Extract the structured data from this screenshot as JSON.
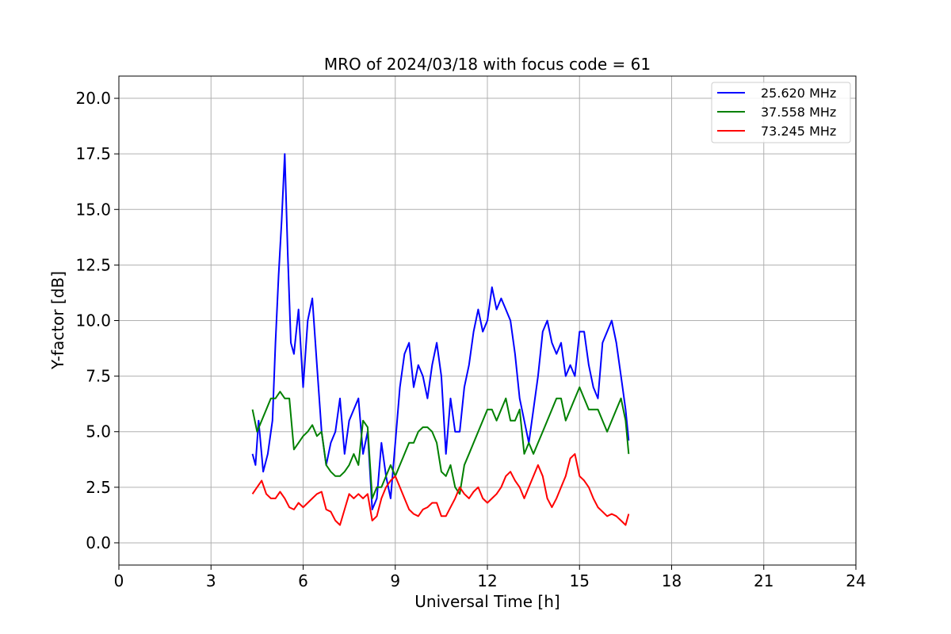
{
  "chart_data": {
    "type": "line",
    "title": "MRO of 2024/03/18 with focus code = 61",
    "xlabel": "Universal Time [h]",
    "ylabel": "Y-factor [dB]",
    "xlim": [
      0,
      24
    ],
    "ylim": [
      -1,
      21
    ],
    "xticks": [
      0,
      3,
      6,
      9,
      12,
      15,
      18,
      21,
      24
    ],
    "yticks": [
      0.0,
      2.5,
      5.0,
      7.5,
      10.0,
      12.5,
      15.0,
      17.5,
      20.0
    ],
    "ytick_labels": [
      "0.0",
      "2.5",
      "5.0",
      "7.5",
      "10.0",
      "12.5",
      "15.0",
      "17.5",
      "20.0"
    ],
    "grid": true,
    "legend_position": "top-right",
    "series": [
      {
        "name": "25.620 MHz",
        "color": "#0000ff",
        "x": [
          4.35,
          4.45,
          4.55,
          4.7,
          4.85,
          5.0,
          5.1,
          5.2,
          5.3,
          5.4,
          5.5,
          5.6,
          5.7,
          5.85,
          6.0,
          6.15,
          6.3,
          6.45,
          6.6,
          6.75,
          6.9,
          7.05,
          7.2,
          7.35,
          7.5,
          7.65,
          7.8,
          7.95,
          8.1,
          8.25,
          8.4,
          8.55,
          8.7,
          8.85,
          9.0,
          9.15,
          9.3,
          9.45,
          9.6,
          9.75,
          9.9,
          10.05,
          10.2,
          10.35,
          10.5,
          10.65,
          10.8,
          10.95,
          11.1,
          11.25,
          11.4,
          11.55,
          11.7,
          11.85,
          12.0,
          12.15,
          12.3,
          12.45,
          12.6,
          12.75,
          12.9,
          13.05,
          13.2,
          13.35,
          13.5,
          13.65,
          13.8,
          13.95,
          14.1,
          14.25,
          14.4,
          14.55,
          14.7,
          14.85,
          15.0,
          15.15,
          15.3,
          15.45,
          15.6,
          15.75,
          15.9,
          16.05,
          16.2,
          16.35,
          16.5,
          16.6
        ],
        "y": [
          4.0,
          3.5,
          5.5,
          3.2,
          4.0,
          5.5,
          9.0,
          12.0,
          14.5,
          17.5,
          13.0,
          9.0,
          8.5,
          10.5,
          7.0,
          10.0,
          11.0,
          8.0,
          5.0,
          3.5,
          4.5,
          5.0,
          6.5,
          4.0,
          5.5,
          6.0,
          6.5,
          4.0,
          5.0,
          1.5,
          2.0,
          4.5,
          3.0,
          2.0,
          4.5,
          7.0,
          8.5,
          9.0,
          7.0,
          8.0,
          7.5,
          6.5,
          8.0,
          9.0,
          7.5,
          4.0,
          6.5,
          5.0,
          5.0,
          7.0,
          8.0,
          9.5,
          10.5,
          9.5,
          10.0,
          11.5,
          10.5,
          11.0,
          10.5,
          10.0,
          8.5,
          6.5,
          5.5,
          4.5,
          6.0,
          7.5,
          9.5,
          10.0,
          9.0,
          8.5,
          9.0,
          7.5,
          8.0,
          7.5,
          9.5,
          9.5,
          8.0,
          7.0,
          6.5,
          9.0,
          9.5,
          10.0,
          9.0,
          7.5,
          6.0,
          4.6
        ]
      },
      {
        "name": "37.558 MHz",
        "color": "#008000",
        "x": [
          4.35,
          4.5,
          4.65,
          4.8,
          4.95,
          5.1,
          5.25,
          5.4,
          5.55,
          5.7,
          5.85,
          6.0,
          6.15,
          6.3,
          6.45,
          6.6,
          6.75,
          6.9,
          7.05,
          7.2,
          7.35,
          7.5,
          7.65,
          7.8,
          7.95,
          8.1,
          8.25,
          8.4,
          8.55,
          8.7,
          8.85,
          9.0,
          9.15,
          9.3,
          9.45,
          9.6,
          9.75,
          9.9,
          10.05,
          10.2,
          10.35,
          10.5,
          10.65,
          10.8,
          10.95,
          11.1,
          11.25,
          11.4,
          11.55,
          11.7,
          11.85,
          12.0,
          12.15,
          12.3,
          12.45,
          12.6,
          12.75,
          12.9,
          13.05,
          13.2,
          13.35,
          13.5,
          13.65,
          13.8,
          13.95,
          14.1,
          14.25,
          14.4,
          14.55,
          14.7,
          14.85,
          15.0,
          15.15,
          15.3,
          15.45,
          15.6,
          15.75,
          15.9,
          16.05,
          16.2,
          16.35,
          16.5,
          16.6
        ],
        "y": [
          6.0,
          5.0,
          5.5,
          6.0,
          6.5,
          6.5,
          6.8,
          6.5,
          6.5,
          4.2,
          4.5,
          4.8,
          5.0,
          5.3,
          4.8,
          5.0,
          3.5,
          3.2,
          3.0,
          3.0,
          3.2,
          3.5,
          4.0,
          3.5,
          5.5,
          5.2,
          2.0,
          2.5,
          2.5,
          3.0,
          3.5,
          3.0,
          3.5,
          4.0,
          4.5,
          4.5,
          5.0,
          5.2,
          5.2,
          5.0,
          4.5,
          3.2,
          3.0,
          3.5,
          2.5,
          2.2,
          3.5,
          4.0,
          4.5,
          5.0,
          5.5,
          6.0,
          6.0,
          5.5,
          6.0,
          6.5,
          5.5,
          5.5,
          6.0,
          4.0,
          4.5,
          4.0,
          4.5,
          5.0,
          5.5,
          6.0,
          6.5,
          6.5,
          5.5,
          6.0,
          6.5,
          7.0,
          6.5,
          6.0,
          6.0,
          6.0,
          5.5,
          5.0,
          5.5,
          6.0,
          6.5,
          5.5,
          4.0
        ]
      },
      {
        "name": "73.245 MHz",
        "color": "#ff0000",
        "x": [
          4.35,
          4.5,
          4.65,
          4.8,
          4.95,
          5.1,
          5.25,
          5.4,
          5.55,
          5.7,
          5.85,
          6.0,
          6.15,
          6.3,
          6.45,
          6.6,
          6.75,
          6.9,
          7.05,
          7.2,
          7.35,
          7.5,
          7.65,
          7.8,
          7.95,
          8.1,
          8.25,
          8.4,
          8.55,
          8.7,
          8.85,
          9.0,
          9.15,
          9.3,
          9.45,
          9.6,
          9.75,
          9.9,
          10.05,
          10.2,
          10.35,
          10.5,
          10.65,
          10.8,
          10.95,
          11.1,
          11.25,
          11.4,
          11.55,
          11.7,
          11.85,
          12.0,
          12.15,
          12.3,
          12.45,
          12.6,
          12.75,
          12.9,
          13.05,
          13.2,
          13.35,
          13.5,
          13.65,
          13.8,
          13.95,
          14.1,
          14.25,
          14.4,
          14.55,
          14.7,
          14.85,
          15.0,
          15.15,
          15.3,
          15.45,
          15.6,
          15.75,
          15.9,
          16.05,
          16.2,
          16.35,
          16.5,
          16.6
        ],
        "y": [
          2.2,
          2.5,
          2.8,
          2.2,
          2.0,
          2.0,
          2.3,
          2.0,
          1.6,
          1.5,
          1.8,
          1.6,
          1.8,
          2.0,
          2.2,
          2.3,
          1.5,
          1.4,
          1.0,
          0.8,
          1.5,
          2.2,
          2.0,
          2.2,
          2.0,
          2.2,
          1.0,
          1.2,
          2.0,
          2.5,
          2.8,
          3.0,
          2.5,
          2.0,
          1.5,
          1.3,
          1.2,
          1.5,
          1.6,
          1.8,
          1.8,
          1.2,
          1.2,
          1.6,
          2.0,
          2.5,
          2.2,
          2.0,
          2.3,
          2.5,
          2.0,
          1.8,
          2.0,
          2.2,
          2.5,
          3.0,
          3.2,
          2.8,
          2.5,
          2.0,
          2.5,
          3.0,
          3.5,
          3.0,
          2.0,
          1.6,
          2.0,
          2.5,
          3.0,
          3.8,
          4.0,
          3.0,
          2.8,
          2.5,
          2.0,
          1.6,
          1.4,
          1.2,
          1.3,
          1.2,
          1.0,
          0.8,
          1.3
        ]
      }
    ]
  }
}
